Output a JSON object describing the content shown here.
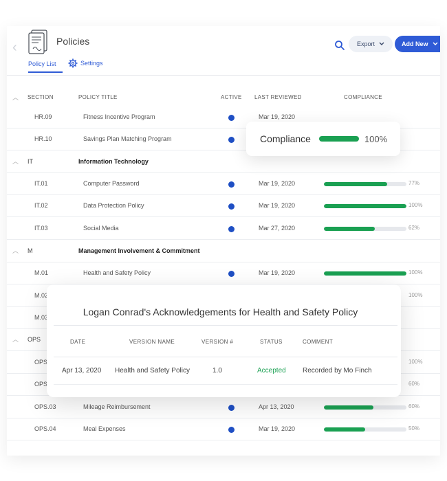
{
  "header": {
    "title": "Policies",
    "export_label": "Export",
    "add_label": "Add New",
    "tabs": [
      {
        "label": "Policy List"
      },
      {
        "label": "Settings"
      }
    ]
  },
  "table": {
    "columns": [
      "SECTION",
      "POLICY TITLE",
      "ACTIVE",
      "LAST REVIEWED",
      "COMPLIANCE"
    ],
    "rows_hr": [
      {
        "section": "HR.09",
        "title": "Fitness Incentive Program",
        "date": "Mar 19, 2020"
      },
      {
        "section": "HR.10",
        "title": "Savings Plan Matching Program"
      }
    ],
    "group_it": {
      "code": "IT",
      "name": "Information Technology"
    },
    "rows_it": [
      {
        "section": "IT.01",
        "title": "Computer Password",
        "date": "Mar 19, 2020",
        "compliance": "77%",
        "fill": 0.77
      },
      {
        "section": "IT.02",
        "title": "Data Protection Policy",
        "date": "Mar 19, 2020",
        "compliance": "100%",
        "fill": 1.0
      },
      {
        "section": "IT.03",
        "title": "Social Media",
        "date": "Mar 27, 2020",
        "compliance": "62%",
        "fill": 0.62
      }
    ],
    "group_m": {
      "code": "M",
      "name": "Management Involvement & Commitment"
    },
    "rows_m": [
      {
        "section": "M.01",
        "title": "Health and Safety Policy",
        "date": "Mar 19, 2020",
        "compliance": "100%",
        "fill": 1.0
      },
      {
        "section": "M.02",
        "compliance": "100%"
      },
      {
        "section": "M.03"
      }
    ],
    "group_ops": {
      "code": "OPS"
    },
    "rows_ops": [
      {
        "section": "OPS.",
        "compliance": "100%"
      },
      {
        "section": "OPS.",
        "compliance": "60%"
      },
      {
        "section": "OPS.03",
        "title": "Mileage Reimbursement",
        "date": "Apr 13, 2020",
        "compliance": "60%",
        "fill": 0.6
      },
      {
        "section": "OPS.04",
        "title": "Meal Expenses",
        "date": "Mar 19, 2020",
        "compliance": "50%",
        "fill": 0.5
      }
    ]
  },
  "tooltip": {
    "label": "Compliance",
    "value": "100%"
  },
  "modal": {
    "title": "Logan Conrad's Acknowledgements for Health and Safety Policy",
    "columns": [
      "DATE",
      "VERSION NAME",
      "VERSION #",
      "STATUS",
      "COMMENT"
    ],
    "row": {
      "date": "Apr 13, 2020",
      "version_name": "Health and Safety Policy",
      "version_num": "1.0",
      "status": "Accepted",
      "comment": "Recorded by Mo Finch"
    }
  },
  "colors": {
    "accent": "#2f5bd6",
    "success": "#1aa052",
    "active_dot": "#1f4fc4"
  }
}
